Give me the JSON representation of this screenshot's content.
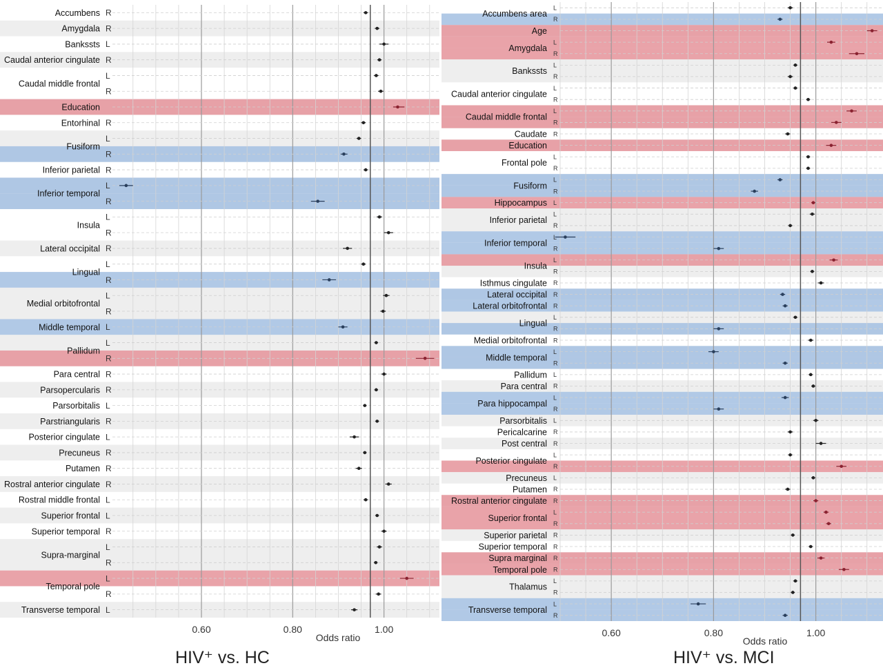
{
  "chart_data": [
    {
      "type": "forest",
      "title": "HIV⁺ vs. HC",
      "xlabel": "Odds ratio",
      "xticks": [
        0.6,
        0.8,
        1.0
      ],
      "xtick_labels": [
        "0.60",
        "0.80",
        "1.00"
      ],
      "xlim": [
        0.405,
        1.12
      ],
      "reference_line": 0.97,
      "colors": {
        "risk": "#e5939a",
        "protective": "#a3c0e2",
        "shade": "#eeeeee",
        "point": "#222222"
      },
      "rows": [
        {
          "region": "Accumbens",
          "side": "R",
          "or": 0.96,
          "lo": 0.955,
          "hi": 0.965,
          "highlight": ""
        },
        {
          "region": "Amygdala",
          "side": "R",
          "or": 0.985,
          "lo": 0.98,
          "hi": 0.99,
          "highlight": ""
        },
        {
          "region": "Bankssts",
          "side": "L",
          "or": 1.0,
          "lo": 0.99,
          "hi": 1.01,
          "highlight": ""
        },
        {
          "region": "Caudal anterior cingulate",
          "side": "R",
          "or": 0.99,
          "lo": 0.985,
          "hi": 0.995,
          "highlight": ""
        },
        {
          "region": "Caudal middle frontal",
          "side": "L",
          "or": 0.983,
          "lo": 0.978,
          "hi": 0.988,
          "highlight": ""
        },
        {
          "region": "Caudal middle frontal",
          "side": "R",
          "or": 0.993,
          "lo": 0.987,
          "hi": 0.999,
          "highlight": ""
        },
        {
          "region": "Education",
          "side": "",
          "or": 1.03,
          "lo": 1.02,
          "hi": 1.045,
          "highlight": "risk"
        },
        {
          "region": "Entorhinal",
          "side": "R",
          "or": 0.955,
          "lo": 0.95,
          "hi": 0.96,
          "highlight": ""
        },
        {
          "region": "Fusiform",
          "side": "L",
          "or": 0.945,
          "lo": 0.94,
          "hi": 0.95,
          "highlight": ""
        },
        {
          "region": "Fusiform",
          "side": "R",
          "or": 0.912,
          "lo": 0.905,
          "hi": 0.92,
          "highlight": "protective"
        },
        {
          "region": "Inferior parietal",
          "side": "R",
          "or": 0.96,
          "lo": 0.955,
          "hi": 0.965,
          "highlight": ""
        },
        {
          "region": "Inferior temporal",
          "side": "L",
          "or": 0.435,
          "lo": 0.42,
          "hi": 0.45,
          "highlight": "protective"
        },
        {
          "region": "Inferior temporal",
          "side": "R",
          "or": 0.855,
          "lo": 0.84,
          "hi": 0.87,
          "highlight": "protective"
        },
        {
          "region": "Insula",
          "side": "L",
          "or": 0.99,
          "lo": 0.984,
          "hi": 0.996,
          "highlight": ""
        },
        {
          "region": "Insula",
          "side": "R",
          "or": 1.01,
          "lo": 1.0,
          "hi": 1.02,
          "highlight": ""
        },
        {
          "region": "Lateral occipital",
          "side": "R",
          "or": 0.92,
          "lo": 0.91,
          "hi": 0.93,
          "highlight": ""
        },
        {
          "region": "Lingual",
          "side": "L",
          "or": 0.955,
          "lo": 0.95,
          "hi": 0.96,
          "highlight": ""
        },
        {
          "region": "Lingual",
          "side": "R",
          "or": 0.88,
          "lo": 0.865,
          "hi": 0.895,
          "highlight": "protective"
        },
        {
          "region": "Medial orbitofrontal",
          "side": "L",
          "or": 1.005,
          "lo": 0.998,
          "hi": 1.012,
          "highlight": ""
        },
        {
          "region": "Medial orbitofrontal",
          "side": "R",
          "or": 0.998,
          "lo": 0.992,
          "hi": 1.004,
          "highlight": ""
        },
        {
          "region": "Middle temporal",
          "side": "L",
          "or": 0.91,
          "lo": 0.9,
          "hi": 0.92,
          "highlight": "protective"
        },
        {
          "region": "Pallidum",
          "side": "L",
          "or": 0.983,
          "lo": 0.979,
          "hi": 0.987,
          "highlight": ""
        },
        {
          "region": "Pallidum",
          "side": "R",
          "or": 1.09,
          "lo": 1.07,
          "hi": 1.11,
          "highlight": "risk"
        },
        {
          "region": "Para central",
          "side": "R",
          "or": 1.0,
          "lo": 0.994,
          "hi": 1.006,
          "highlight": ""
        },
        {
          "region": "Parsopercularis",
          "side": "R",
          "or": 0.983,
          "lo": 0.979,
          "hi": 0.987,
          "highlight": ""
        },
        {
          "region": "Parsorbitalis",
          "side": "L",
          "or": 0.958,
          "lo": 0.954,
          "hi": 0.962,
          "highlight": ""
        },
        {
          "region": "Parstriangularis",
          "side": "R",
          "or": 0.985,
          "lo": 0.981,
          "hi": 0.989,
          "highlight": ""
        },
        {
          "region": "Posterior cingulate",
          "side": "L",
          "or": 0.935,
          "lo": 0.925,
          "hi": 0.945,
          "highlight": ""
        },
        {
          "region": "Precuneus",
          "side": "R",
          "or": 0.958,
          "lo": 0.954,
          "hi": 0.962,
          "highlight": ""
        },
        {
          "region": "Putamen",
          "side": "R",
          "or": 0.945,
          "lo": 0.938,
          "hi": 0.952,
          "highlight": ""
        },
        {
          "region": "Rostral anterior cingulate",
          "side": "R",
          "or": 1.01,
          "lo": 1.003,
          "hi": 1.017,
          "highlight": ""
        },
        {
          "region": "Rostral middle frontal",
          "side": "L",
          "or": 0.96,
          "lo": 0.955,
          "hi": 0.965,
          "highlight": ""
        },
        {
          "region": "Superior frontal",
          "side": "L",
          "or": 0.985,
          "lo": 0.981,
          "hi": 0.989,
          "highlight": ""
        },
        {
          "region": "Superior temporal",
          "side": "R",
          "or": 1.0,
          "lo": 0.994,
          "hi": 1.006,
          "highlight": ""
        },
        {
          "region": "Supra-marginal",
          "side": "L",
          "or": 0.99,
          "lo": 0.984,
          "hi": 0.996,
          "highlight": ""
        },
        {
          "region": "Supra-marginal",
          "side": "R",
          "or": 0.982,
          "lo": 0.978,
          "hi": 0.986,
          "highlight": ""
        },
        {
          "region": "Temporal pole",
          "side": "L",
          "or": 1.05,
          "lo": 1.035,
          "hi": 1.065,
          "highlight": "risk"
        },
        {
          "region": "Temporal pole",
          "side": "R",
          "or": 0.988,
          "lo": 0.982,
          "hi": 0.994,
          "highlight": ""
        },
        {
          "region": "Transverse temporal",
          "side": "L",
          "or": 0.935,
          "lo": 0.928,
          "hi": 0.942,
          "highlight": ""
        }
      ]
    },
    {
      "type": "forest",
      "title": "HIV⁺ vs. MCI",
      "xlabel": "Odds ratio",
      "xticks": [
        0.6,
        0.8,
        1.0
      ],
      "xtick_labels": [
        "0.60",
        "0.80",
        "1.00"
      ],
      "xlim": [
        0.5,
        1.13
      ],
      "reference_line": 0.97,
      "colors": {
        "risk": "#e5939a",
        "protective": "#a3c0e2",
        "shade": "#eeeeee",
        "point": "#222222"
      },
      "rows": [
        {
          "region": "Accumbens area",
          "side": "L",
          "or": 0.95,
          "lo": 0.945,
          "hi": 0.955,
          "highlight": ""
        },
        {
          "region": "Accumbens area",
          "side": "R",
          "or": 0.93,
          "lo": 0.925,
          "hi": 0.935,
          "highlight": "protective"
        },
        {
          "region": "Age",
          "side": "",
          "or": 1.11,
          "lo": 1.1,
          "hi": 1.12,
          "highlight": "risk"
        },
        {
          "region": "Amygdala",
          "side": "L",
          "or": 1.03,
          "lo": 1.022,
          "hi": 1.038,
          "highlight": "risk"
        },
        {
          "region": "Amygdala",
          "side": "R",
          "or": 1.08,
          "lo": 1.065,
          "hi": 1.095,
          "highlight": "risk"
        },
        {
          "region": "Bankssts",
          "side": "L",
          "or": 0.96,
          "lo": 0.956,
          "hi": 0.964,
          "highlight": ""
        },
        {
          "region": "Bankssts",
          "side": "R",
          "or": 0.95,
          "lo": 0.945,
          "hi": 0.955,
          "highlight": ""
        },
        {
          "region": "Caudal anterior cingulate",
          "side": "L",
          "or": 0.96,
          "lo": 0.956,
          "hi": 0.964,
          "highlight": ""
        },
        {
          "region": "Caudal anterior cingulate",
          "side": "R",
          "or": 0.985,
          "lo": 0.981,
          "hi": 0.989,
          "highlight": ""
        },
        {
          "region": "Caudal middle frontal",
          "side": "L",
          "or": 1.07,
          "lo": 1.06,
          "hi": 1.08,
          "highlight": "risk"
        },
        {
          "region": "Caudal middle frontal",
          "side": "R",
          "or": 1.04,
          "lo": 1.03,
          "hi": 1.05,
          "highlight": "risk"
        },
        {
          "region": "Caudate",
          "side": "R",
          "or": 0.945,
          "lo": 0.94,
          "hi": 0.95,
          "highlight": ""
        },
        {
          "region": "Education",
          "side": "",
          "or": 1.03,
          "lo": 1.02,
          "hi": 1.04,
          "highlight": "risk"
        },
        {
          "region": "Frontal pole",
          "side": "L",
          "or": 0.985,
          "lo": 0.981,
          "hi": 0.989,
          "highlight": ""
        },
        {
          "region": "Frontal pole",
          "side": "R",
          "or": 0.985,
          "lo": 0.981,
          "hi": 0.989,
          "highlight": ""
        },
        {
          "region": "Fusiform",
          "side": "L",
          "or": 0.93,
          "lo": 0.925,
          "hi": 0.935,
          "highlight": "protective"
        },
        {
          "region": "Fusiform",
          "side": "R",
          "or": 0.88,
          "lo": 0.873,
          "hi": 0.887,
          "highlight": "protective"
        },
        {
          "region": "Hippocampus",
          "side": "L",
          "or": 0.995,
          "lo": 0.991,
          "hi": 0.999,
          "highlight": "risk"
        },
        {
          "region": "Inferior parietal",
          "side": "L",
          "or": 0.993,
          "lo": 0.988,
          "hi": 0.998,
          "highlight": ""
        },
        {
          "region": "Inferior parietal",
          "side": "R",
          "or": 0.95,
          "lo": 0.946,
          "hi": 0.954,
          "highlight": ""
        },
        {
          "region": "Inferior temporal",
          "side": "L",
          "or": 0.51,
          "lo": 0.49,
          "hi": 0.53,
          "highlight": "protective"
        },
        {
          "region": "Inferior temporal",
          "side": "R",
          "or": 0.81,
          "lo": 0.8,
          "hi": 0.82,
          "highlight": "protective"
        },
        {
          "region": "Insula",
          "side": "L",
          "or": 1.035,
          "lo": 1.027,
          "hi": 1.043,
          "highlight": "risk"
        },
        {
          "region": "Insula",
          "side": "R",
          "or": 0.993,
          "lo": 0.989,
          "hi": 0.997,
          "highlight": ""
        },
        {
          "region": "Isthmus cingulate",
          "side": "R",
          "or": 1.01,
          "lo": 1.004,
          "hi": 1.016,
          "highlight": ""
        },
        {
          "region": "Lateral occipital",
          "side": "R",
          "or": 0.935,
          "lo": 0.93,
          "hi": 0.94,
          "highlight": "protective"
        },
        {
          "region": "Lateral orbitofrontal",
          "side": "R",
          "or": 0.94,
          "lo": 0.935,
          "hi": 0.945,
          "highlight": "protective"
        },
        {
          "region": "Lingual",
          "side": "L",
          "or": 0.96,
          "lo": 0.956,
          "hi": 0.964,
          "highlight": ""
        },
        {
          "region": "Lingual",
          "side": "R",
          "or": 0.81,
          "lo": 0.8,
          "hi": 0.82,
          "highlight": "protective"
        },
        {
          "region": "Medial orbitofrontal",
          "side": "R",
          "or": 0.99,
          "lo": 0.985,
          "hi": 0.995,
          "highlight": ""
        },
        {
          "region": "Middle temporal",
          "side": "L",
          "or": 0.8,
          "lo": 0.79,
          "hi": 0.81,
          "highlight": "protective"
        },
        {
          "region": "Middle temporal",
          "side": "R",
          "or": 0.94,
          "lo": 0.935,
          "hi": 0.945,
          "highlight": "protective"
        },
        {
          "region": "Pallidum",
          "side": "L",
          "or": 0.99,
          "lo": 0.986,
          "hi": 0.994,
          "highlight": ""
        },
        {
          "region": "Para central",
          "side": "R",
          "or": 0.995,
          "lo": 0.991,
          "hi": 0.999,
          "highlight": ""
        },
        {
          "region": "Para hippocampal",
          "side": "L",
          "or": 0.94,
          "lo": 0.933,
          "hi": 0.947,
          "highlight": "protective"
        },
        {
          "region": "Para hippocampal",
          "side": "R",
          "or": 0.81,
          "lo": 0.8,
          "hi": 0.82,
          "highlight": "protective"
        },
        {
          "region": "Parsorbitalis",
          "side": "L",
          "or": 1.0,
          "lo": 0.995,
          "hi": 1.005,
          "highlight": ""
        },
        {
          "region": "Pericalcarine",
          "side": "R",
          "or": 0.95,
          "lo": 0.945,
          "hi": 0.955,
          "highlight": ""
        },
        {
          "region": "Post central",
          "side": "R",
          "or": 1.01,
          "lo": 1.0,
          "hi": 1.02,
          "highlight": ""
        },
        {
          "region": "Posterior cingulate",
          "side": "L",
          "or": 0.95,
          "lo": 0.946,
          "hi": 0.954,
          "highlight": ""
        },
        {
          "region": "Posterior cingulate",
          "side": "R",
          "or": 1.05,
          "lo": 1.04,
          "hi": 1.06,
          "highlight": "risk"
        },
        {
          "region": "Precuneus",
          "side": "L",
          "or": 0.995,
          "lo": 0.991,
          "hi": 0.999,
          "highlight": ""
        },
        {
          "region": "Putamen",
          "side": "R",
          "or": 0.945,
          "lo": 0.94,
          "hi": 0.95,
          "highlight": ""
        },
        {
          "region": "Rostral anterior cingulate",
          "side": "R",
          "or": 1.0,
          "lo": 0.995,
          "hi": 1.005,
          "highlight": "risk"
        },
        {
          "region": "Superior frontal",
          "side": "L",
          "or": 1.02,
          "lo": 1.015,
          "hi": 1.025,
          "highlight": "risk"
        },
        {
          "region": "Superior frontal",
          "side": "R",
          "or": 1.025,
          "lo": 1.02,
          "hi": 1.03,
          "highlight": "risk"
        },
        {
          "region": "Superior parietal",
          "side": "R",
          "or": 0.955,
          "lo": 0.951,
          "hi": 0.959,
          "highlight": ""
        },
        {
          "region": "Superior temporal",
          "side": "R",
          "or": 0.99,
          "lo": 0.986,
          "hi": 0.994,
          "highlight": ""
        },
        {
          "region": "Supra marginal",
          "side": "R",
          "or": 1.01,
          "lo": 1.003,
          "hi": 1.017,
          "highlight": "risk"
        },
        {
          "region": "Temporal pole",
          "side": "R",
          "or": 1.055,
          "lo": 1.045,
          "hi": 1.065,
          "highlight": "risk"
        },
        {
          "region": "Thalamus",
          "side": "L",
          "or": 0.96,
          "lo": 0.956,
          "hi": 0.964,
          "highlight": ""
        },
        {
          "region": "Thalamus",
          "side": "R",
          "or": 0.955,
          "lo": 0.951,
          "hi": 0.959,
          "highlight": ""
        },
        {
          "region": "Transverse temporal",
          "side": "L",
          "or": 0.77,
          "lo": 0.755,
          "hi": 0.785,
          "highlight": "protective"
        },
        {
          "region": "Transverse temporal",
          "side": "R",
          "or": 0.94,
          "lo": 0.935,
          "hi": 0.945,
          "highlight": "protective"
        }
      ]
    }
  ]
}
